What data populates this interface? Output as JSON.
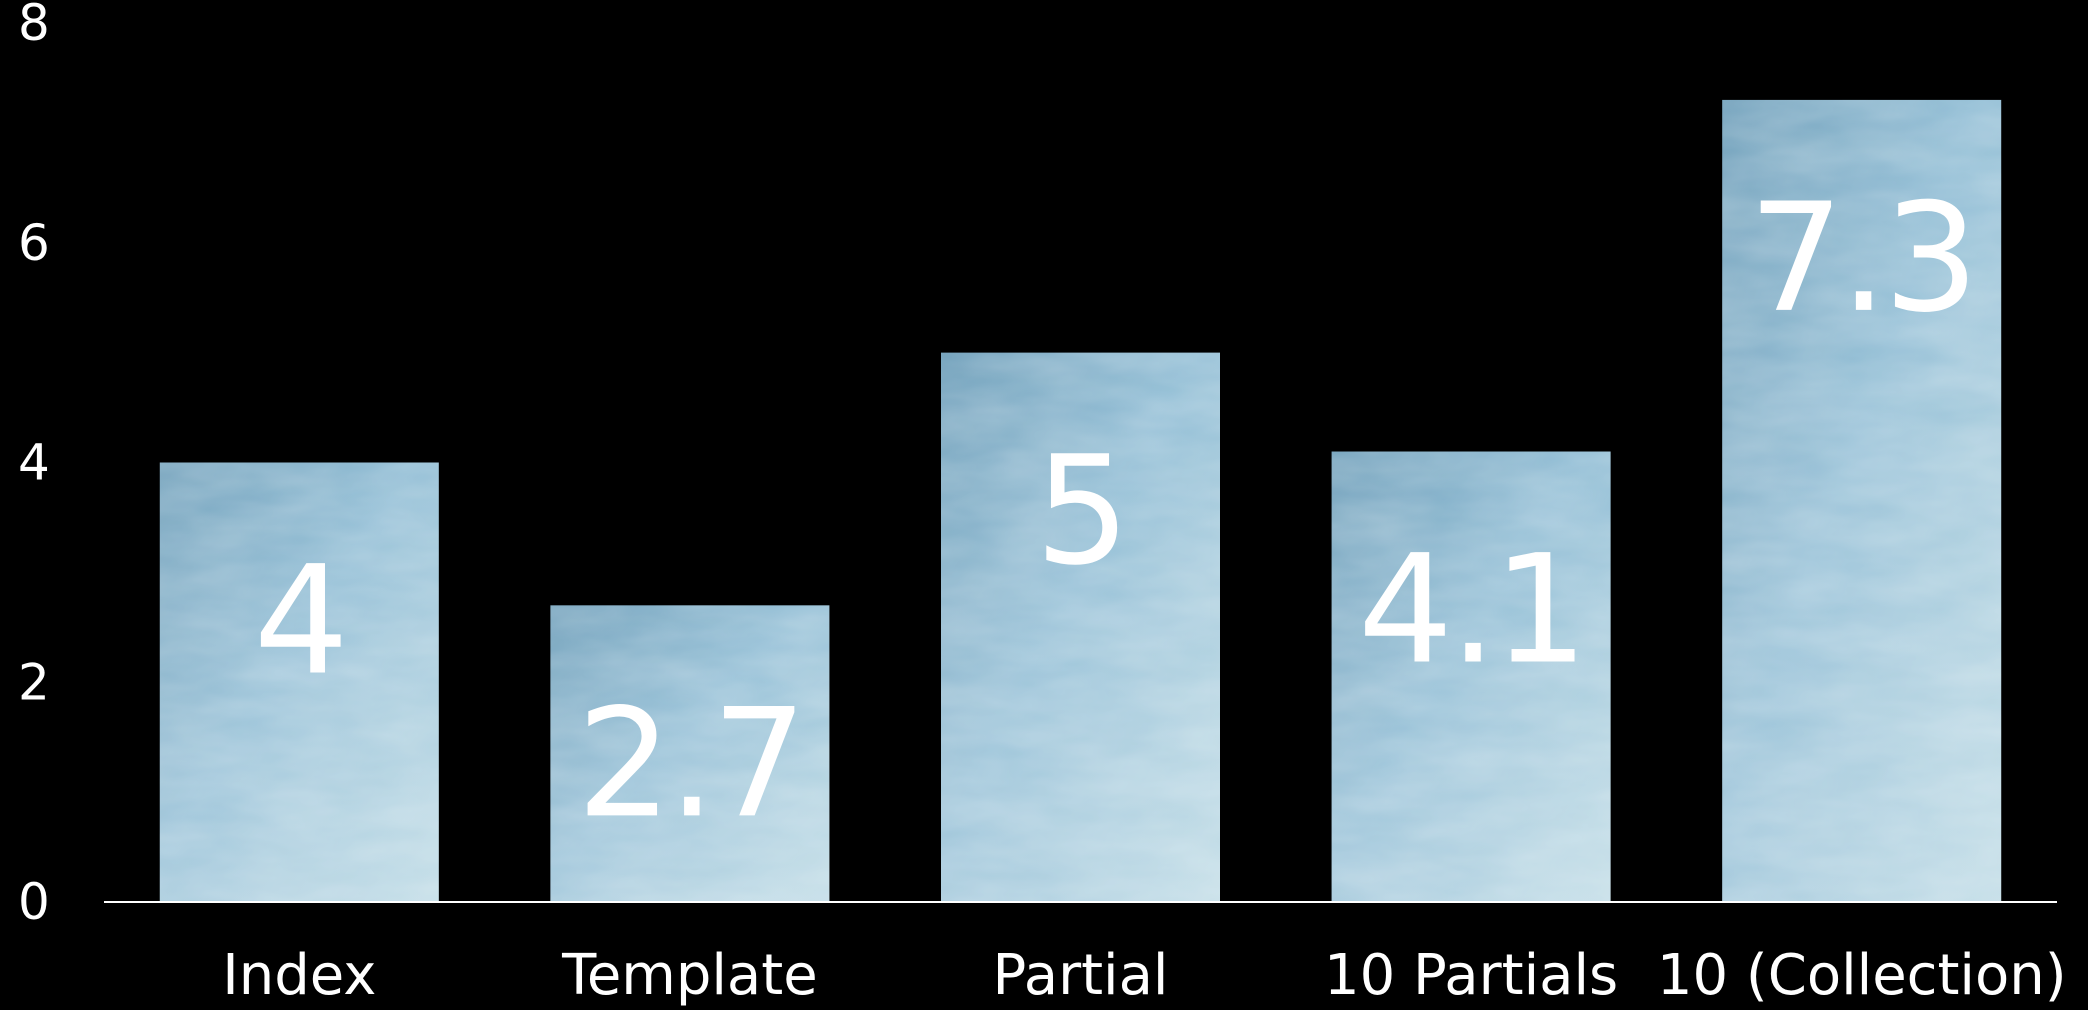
{
  "chart_data": {
    "type": "bar",
    "categories": [
      "Index",
      "Template",
      "Partial",
      "10 Partials",
      "10 (Collection)"
    ],
    "values": [
      4,
      2.7,
      5,
      4.1,
      7.3
    ],
    "data_labels": [
      "4",
      "2.7",
      "5",
      "4.1",
      "7.3"
    ],
    "title": "",
    "xlabel": "",
    "ylabel": "",
    "ylim": [
      0,
      8
    ],
    "yticks": [
      "0",
      "2",
      "4",
      "6",
      "8"
    ],
    "grid": false,
    "legend": "none",
    "colors": {
      "background": "#000000",
      "bar_fill": "#8fbcd4",
      "bar_light": "#b6d6e2",
      "bar_dark": "#6f9fba",
      "bar_accent": "#8cc6b9",
      "axis": "#ffffff",
      "text": "#ffffff"
    }
  }
}
